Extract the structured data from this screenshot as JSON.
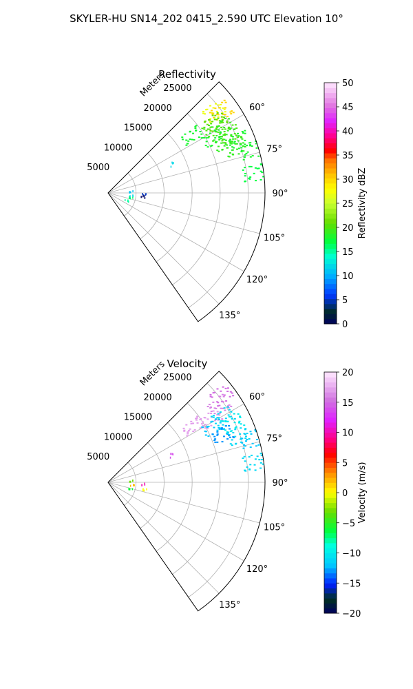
{
  "figure": {
    "title": "SKYLER-HU  SN14_202  0415_2.590 UTC Elevation 10°"
  },
  "chart_data": [
    {
      "type": "polar-sector",
      "title": "Reflectivity",
      "rlabel": "Meters",
      "theta_range_deg": [
        45,
        145
      ],
      "r_range": [
        0,
        28000
      ],
      "theta_ticks": [
        "60°",
        "75°",
        "90°",
        "105°",
        "120°",
        "135°"
      ],
      "r_ticks": [
        "5000",
        "10000",
        "15000",
        "20000",
        "25000"
      ],
      "grid": true,
      "colorbar": {
        "label": "Reflectivity dBZ",
        "min": 0,
        "max": 50,
        "ticks": [
          "0",
          "5",
          "10",
          "15",
          "20",
          "25",
          "30",
          "35",
          "40",
          "45",
          "50"
        ]
      },
      "echoes": [
        {
          "theta_deg": 52,
          "r_m": 23800,
          "value": 27
        },
        {
          "theta_deg": 54,
          "r_m": 24800,
          "value": 30
        },
        {
          "theta_deg": 56,
          "r_m": 23000,
          "value": 21
        },
        {
          "theta_deg": 58,
          "r_m": 22000,
          "value": 20
        },
        {
          "theta_deg": 60,
          "r_m": 23500,
          "value": 19
        },
        {
          "theta_deg": 62,
          "r_m": 21000,
          "value": 18
        },
        {
          "theta_deg": 64,
          "r_m": 24000,
          "value": 20
        },
        {
          "theta_deg": 66,
          "r_m": 22500,
          "value": 19
        },
        {
          "theta_deg": 68,
          "r_m": 25000,
          "value": 18
        },
        {
          "theta_deg": 70,
          "r_m": 24000,
          "value": 19
        },
        {
          "theta_deg": 73,
          "r_m": 26500,
          "value": 18
        },
        {
          "theta_deg": 82,
          "r_m": 26000,
          "value": 17
        },
        {
          "theta_deg": 55,
          "r_m": 18000,
          "value": 18
        },
        {
          "theta_deg": 65,
          "r_m": 12500,
          "value": 12
        },
        {
          "theta_deg": 85,
          "r_m": 4000,
          "value": 11
        },
        {
          "theta_deg": 95,
          "r_m": 4200,
          "value": 12
        },
        {
          "theta_deg": 100,
          "r_m": 4000,
          "value": 16
        },
        {
          "theta_deg": 110,
          "r_m": 3500,
          "value": 15
        },
        {
          "theta_deg": 91,
          "r_m": 6300,
          "value": 5
        },
        {
          "theta_deg": 95,
          "r_m": 6200,
          "value": 0
        }
      ]
    },
    {
      "type": "polar-sector",
      "title": "Velocity",
      "rlabel": "Meters",
      "theta_range_deg": [
        45,
        145
      ],
      "r_range": [
        0,
        28000
      ],
      "theta_ticks": [
        "60°",
        "75°",
        "90°",
        "105°",
        "120°",
        "135°"
      ],
      "r_ticks": [
        "5000",
        "10000",
        "15000",
        "20000",
        "25000"
      ],
      "grid": true,
      "colorbar": {
        "label": "Velocity (m/s)",
        "min": -20,
        "max": 20,
        "ticks": [
          "−20",
          "−15",
          "−10",
          "−5",
          "0",
          "5",
          "10",
          "15",
          "20"
        ]
      },
      "echoes": [
        {
          "theta_deg": 52,
          "r_m": 25500,
          "value": 15
        },
        {
          "theta_deg": 55,
          "r_m": 24000,
          "value": 16
        },
        {
          "theta_deg": 58,
          "r_m": 21500,
          "value": 17
        },
        {
          "theta_deg": 60,
          "r_m": 23500,
          "value": -11
        },
        {
          "theta_deg": 62,
          "r_m": 21000,
          "value": -12
        },
        {
          "theta_deg": 64,
          "r_m": 24500,
          "value": -10
        },
        {
          "theta_deg": 67,
          "r_m": 22000,
          "value": -13
        },
        {
          "theta_deg": 70,
          "r_m": 24500,
          "value": -11
        },
        {
          "theta_deg": 73,
          "r_m": 26500,
          "value": -12
        },
        {
          "theta_deg": 82,
          "r_m": 26000,
          "value": -11
        },
        {
          "theta_deg": 56,
          "r_m": 18000,
          "value": 17
        },
        {
          "theta_deg": 66,
          "r_m": 12300,
          "value": 14
        },
        {
          "theta_deg": 85,
          "r_m": 4000,
          "value": -3
        },
        {
          "theta_deg": 95,
          "r_m": 4300,
          "value": 2
        },
        {
          "theta_deg": 105,
          "r_m": 4000,
          "value": -6
        },
        {
          "theta_deg": 92,
          "r_m": 6300,
          "value": 10
        },
        {
          "theta_deg": 100,
          "r_m": 6500,
          "value": 0
        }
      ]
    }
  ]
}
